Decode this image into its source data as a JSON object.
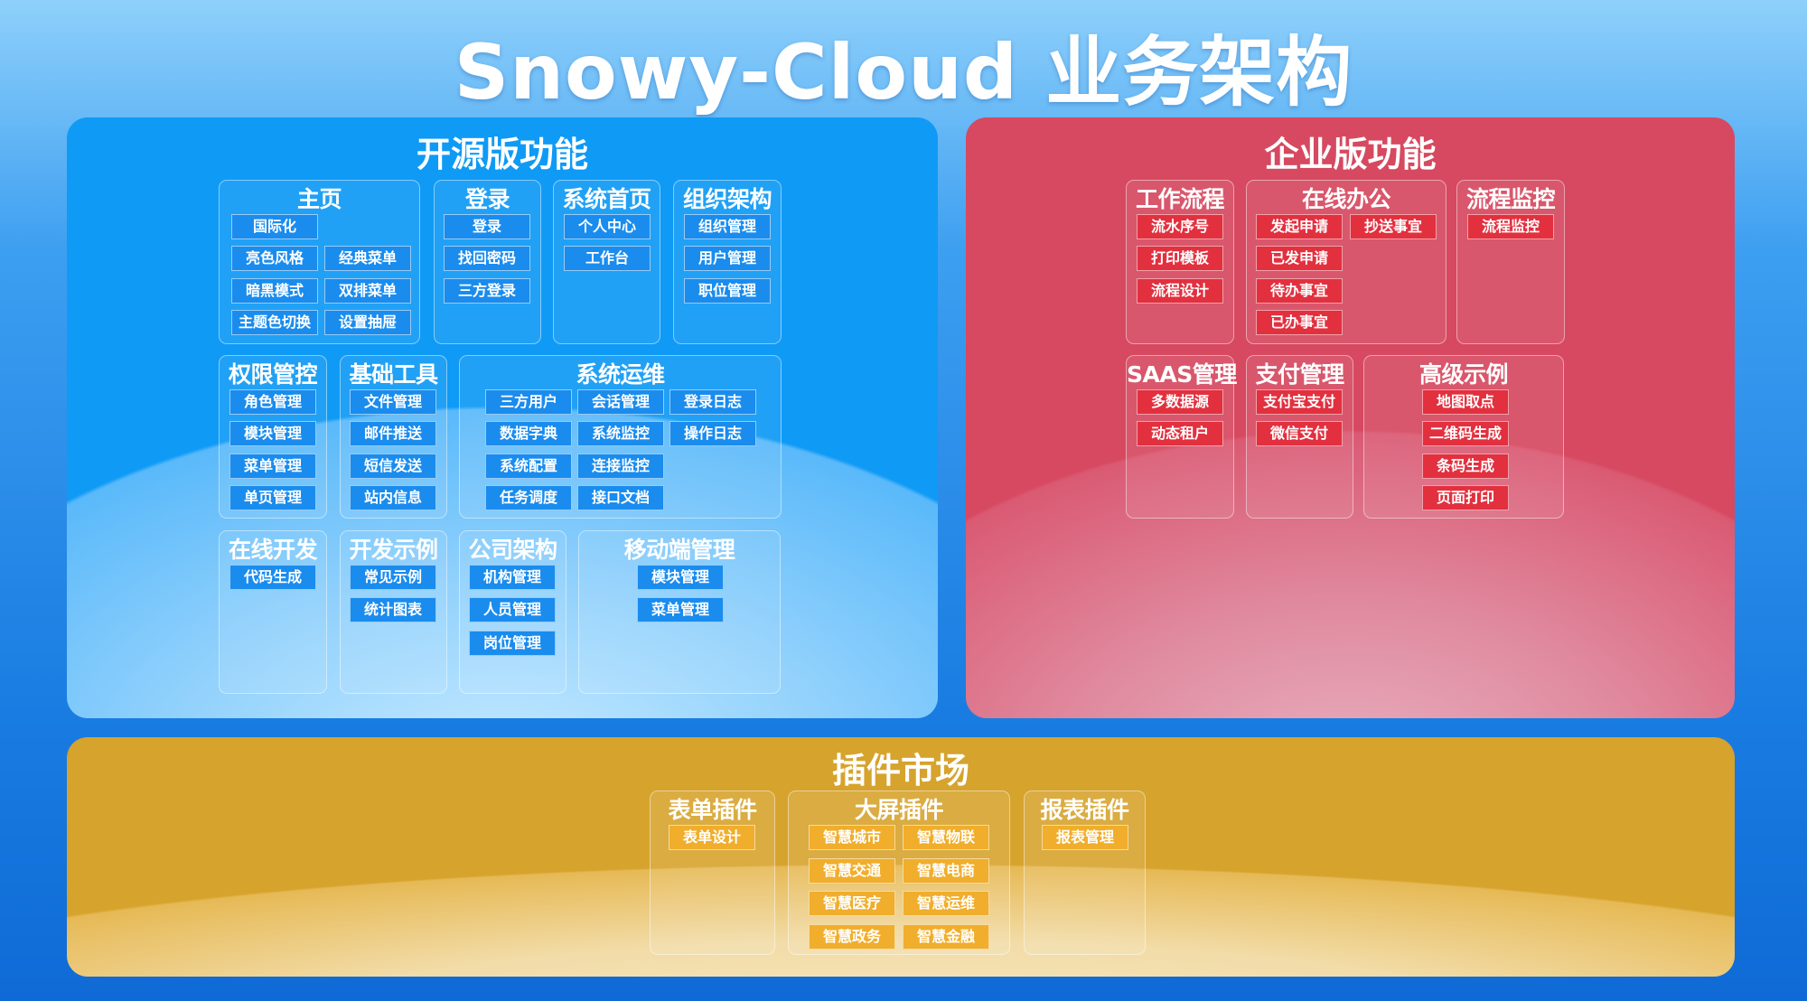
{
  "title": "Snowy-Cloud 业务架构",
  "colors": {
    "open_source": "#0f9af5",
    "enterprise": "#d64960",
    "plugins": "#d6a32d",
    "background": "#1a7de2"
  },
  "sections": [
    {
      "id": "open",
      "title": "开源版功能",
      "groups": [
        {
          "title": "主页",
          "rows": [
            [
              "国际化"
            ],
            [
              "亮色风格",
              "经典菜单"
            ],
            [
              "暗黑模式",
              "双排菜单"
            ],
            [
              "主题色切换",
              "设置抽屉"
            ]
          ]
        },
        {
          "title": "登录",
          "rows": [
            [
              "登录"
            ],
            [
              "找回密码"
            ],
            [
              "三方登录"
            ]
          ]
        },
        {
          "title": "系统首页",
          "rows": [
            [
              "个人中心"
            ],
            [
              "工作台"
            ]
          ]
        },
        {
          "title": "组织架构",
          "rows": [
            [
              "组织管理"
            ],
            [
              "用户管理"
            ],
            [
              "职位管理"
            ]
          ]
        },
        {
          "title": "权限管控",
          "rows": [
            [
              "角色管理"
            ],
            [
              "模块管理"
            ],
            [
              "菜单管理"
            ],
            [
              "单页管理"
            ]
          ]
        },
        {
          "title": "基础工具",
          "rows": [
            [
              "文件管理"
            ],
            [
              "邮件推送"
            ],
            [
              "短信发送"
            ],
            [
              "站内信息"
            ]
          ]
        },
        {
          "title": "系统运维",
          "rows": [
            [
              "三方用户",
              "会话管理",
              "登录日志"
            ],
            [
              "数据字典",
              "系统监控",
              "操作日志"
            ],
            [
              "系统配置",
              "连接监控"
            ],
            [
              "任务调度",
              "接口文档"
            ]
          ]
        },
        {
          "title": "在线开发",
          "rows": [
            [
              "代码生成"
            ]
          ]
        },
        {
          "title": "开发示例",
          "rows": [
            [
              "常见示例"
            ],
            [
              "统计图表"
            ]
          ]
        },
        {
          "title": "公司架构",
          "rows": [
            [
              "机构管理"
            ],
            [
              "人员管理"
            ],
            [
              "岗位管理"
            ]
          ]
        },
        {
          "title": "移动端管理",
          "rows": [
            [
              "模块管理"
            ],
            [
              "菜单管理"
            ]
          ]
        }
      ]
    },
    {
      "id": "ent",
      "title": "企业版功能",
      "groups": [
        {
          "title": "工作流程",
          "rows": [
            [
              "流水序号"
            ],
            [
              "打印模板"
            ],
            [
              "流程设计"
            ]
          ]
        },
        {
          "title": "在线办公",
          "rows": [
            [
              "发起申请",
              "抄送事宜"
            ],
            [
              "已发申请"
            ],
            [
              "待办事宜"
            ],
            [
              "已办事宜"
            ]
          ]
        },
        {
          "title": "流程监控",
          "rows": [
            [
              "流程监控"
            ]
          ]
        },
        {
          "title": "SAAS管理",
          "rows": [
            [
              "多数据源"
            ],
            [
              "动态租户"
            ]
          ]
        },
        {
          "title": "支付管理",
          "rows": [
            [
              "支付宝支付"
            ],
            [
              "微信支付"
            ]
          ]
        },
        {
          "title": "高级示例",
          "rows": [
            [
              "地图取点"
            ],
            [
              "二维码生成"
            ],
            [
              "条码生成"
            ],
            [
              "页面打印"
            ]
          ]
        }
      ]
    },
    {
      "id": "plug",
      "title": "插件市场",
      "groups": [
        {
          "title": "表单插件",
          "rows": [
            [
              "表单设计"
            ]
          ]
        },
        {
          "title": "大屏插件",
          "rows": [
            [
              "智慧城市",
              "智慧物联"
            ],
            [
              "智慧交通",
              "智慧电商"
            ],
            [
              "智慧医疗",
              "智慧运维"
            ],
            [
              "智慧政务",
              "智慧金融"
            ]
          ]
        },
        {
          "title": "报表插件",
          "rows": [
            [
              "报表管理"
            ]
          ]
        }
      ]
    }
  ]
}
